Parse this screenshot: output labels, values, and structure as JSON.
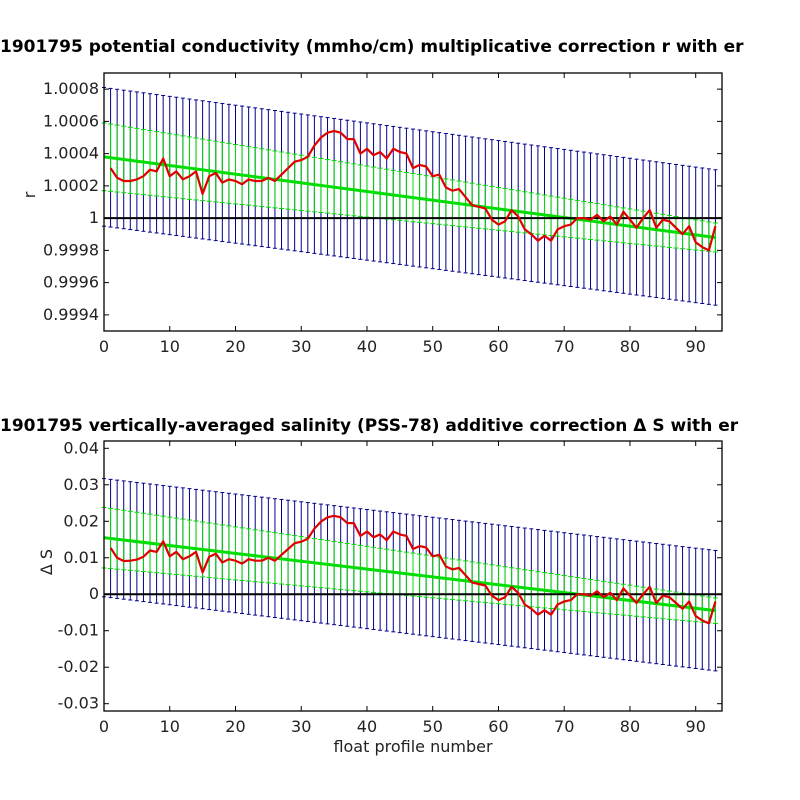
{
  "chart_data": [
    {
      "type": "line",
      "title": "1901795 potential conductivity (mmho/cm) multiplicative correction r with er",
      "xlabel": "",
      "ylabel": "r",
      "xlim": [
        0,
        94
      ],
      "ylim": [
        0.9993,
        1.0009
      ],
      "xticks": [
        0,
        10,
        20,
        30,
        40,
        50,
        60,
        70,
        80,
        90
      ],
      "yticks": [
        0.9994,
        0.9996,
        0.9998,
        1,
        1.0002,
        1.0004,
        1.0006,
        1.0008
      ],
      "ytick_labels": [
        "0.9994",
        "0.9996",
        "0.9998",
        "1",
        "1.0002",
        "1.0004",
        "1.0006",
        "1.0008"
      ],
      "reference_line": 1,
      "fit": {
        "x_start": 0,
        "x_end": 93,
        "y_start": 1.00038,
        "y_end": 0.99988
      },
      "inner_err": {
        "half_start": 0.00021,
        "half_end": 9e-05
      },
      "outer_err": {
        "half_start": 0.00043,
        "half_end": 0.00042
      },
      "series": [
        {
          "color": "#e00000",
          "x": [
            1,
            2,
            3,
            4,
            5,
            6,
            7,
            8,
            9,
            10,
            11,
            12,
            13,
            14,
            15,
            16,
            17,
            18,
            19,
            20,
            21,
            22,
            23,
            24,
            25,
            26,
            27,
            28,
            29,
            30,
            31,
            32,
            33,
            34,
            35,
            36,
            37,
            38,
            39,
            40,
            41,
            42,
            43,
            44,
            45,
            46,
            47,
            48,
            49,
            50,
            51,
            52,
            53,
            54,
            55,
            56,
            57,
            58,
            59,
            60,
            61,
            62,
            63,
            64,
            65,
            66,
            67,
            68,
            69,
            70,
            71,
            72,
            73,
            74,
            75,
            76,
            77,
            78,
            79,
            80,
            81,
            82,
            83,
            84,
            85,
            86,
            87,
            88,
            89,
            90,
            91,
            92,
            93
          ],
          "values": [
            1.00031,
            1.00025,
            1.00023,
            1.00023,
            1.00024,
            1.00026,
            1.0003,
            1.00029,
            1.00037,
            1.00026,
            1.00029,
            1.00024,
            1.00026,
            1.00029,
            1.00015,
            1.00026,
            1.00028,
            1.00022,
            1.00024,
            1.00023,
            1.00021,
            1.00024,
            1.00023,
            1.00023,
            1.00025,
            1.00023,
            1.00027,
            1.00031,
            1.00035,
            1.00036,
            1.00038,
            1.00045,
            1.0005,
            1.00053,
            1.00054,
            1.00053,
            1.00049,
            1.00049,
            1.0004,
            1.00043,
            1.00039,
            1.00041,
            1.00037,
            1.00043,
            1.00041,
            1.0004,
            1.00031,
            1.00033,
            1.00032,
            1.00026,
            1.00027,
            1.00019,
            1.00017,
            1.00018,
            1.00013,
            1.00008,
            1.00007,
            1.00006,
            0.99999,
            0.99996,
            0.99998,
            1.00005,
            1.00001,
            0.99993,
            0.9999,
            0.99986,
            0.99989,
            0.99986,
            0.99993,
            0.99995,
            0.99996,
            1.0,
            1.0,
            0.99999,
            1.00002,
            0.99998,
            1.00001,
            0.99996,
            1.00004,
            0.99999,
            0.99994,
            1.0,
            1.00005,
            0.99994,
            0.99999,
            0.99998,
            0.99994,
            0.9999,
            0.99995,
            0.99985,
            0.99982,
            0.9998,
            0.99995
          ]
        }
      ]
    },
    {
      "type": "line",
      "title": "1901795 vertically-averaged salinity (PSS-78) additive correction Δ S with er",
      "xlabel": "float profile number",
      "ylabel": "Δ S",
      "xlim": [
        0,
        94
      ],
      "ylim": [
        -0.032,
        0.042
      ],
      "xticks": [
        0,
        10,
        20,
        30,
        40,
        50,
        60,
        70,
        80,
        90
      ],
      "yticks": [
        -0.03,
        -0.02,
        -0.01,
        0,
        0.01,
        0.02,
        0.03,
        0.04
      ],
      "ytick_labels": [
        "-0.03",
        "-0.02",
        "-0.01",
        "0",
        "0.01",
        "0.02",
        "0.03",
        "0.04"
      ],
      "reference_line": 0,
      "fit": {
        "x_start": 0,
        "x_end": 93,
        "y_start": 0.0155,
        "y_end": -0.0045
      },
      "inner_err": {
        "half_start": 0.0083,
        "half_end": 0.0035
      },
      "outer_err": {
        "half_start": 0.0162,
        "half_end": 0.0165
      },
      "series": [
        {
          "color": "#e00000",
          "x": [
            1,
            2,
            3,
            4,
            5,
            6,
            7,
            8,
            9,
            10,
            11,
            12,
            13,
            14,
            15,
            16,
            17,
            18,
            19,
            20,
            21,
            22,
            23,
            24,
            25,
            26,
            27,
            28,
            29,
            30,
            31,
            32,
            33,
            34,
            35,
            36,
            37,
            38,
            39,
            40,
            41,
            42,
            43,
            44,
            45,
            46,
            47,
            48,
            49,
            50,
            51,
            52,
            53,
            54,
            55,
            56,
            57,
            58,
            59,
            60,
            61,
            62,
            63,
            64,
            65,
            66,
            67,
            68,
            69,
            70,
            71,
            72,
            73,
            74,
            75,
            76,
            77,
            78,
            79,
            80,
            81,
            82,
            83,
            84,
            85,
            86,
            87,
            88,
            89,
            90,
            91,
            92,
            93
          ],
          "values": [
            0.0127,
            0.01,
            0.0091,
            0.0092,
            0.0095,
            0.0103,
            0.012,
            0.0116,
            0.0145,
            0.0104,
            0.0116,
            0.0096,
            0.0104,
            0.0116,
            0.006,
            0.0103,
            0.0111,
            0.0087,
            0.0096,
            0.0092,
            0.0084,
            0.0096,
            0.0092,
            0.0092,
            0.01,
            0.0092,
            0.0108,
            0.0124,
            0.014,
            0.0144,
            0.0152,
            0.018,
            0.0199,
            0.0211,
            0.0215,
            0.0211,
            0.0195,
            0.0195,
            0.016,
            0.0172,
            0.0156,
            0.0164,
            0.0148,
            0.0172,
            0.0164,
            0.016,
            0.0124,
            0.0132,
            0.0128,
            0.0104,
            0.0108,
            0.0076,
            0.0068,
            0.0072,
            0.0052,
            0.0032,
            0.0028,
            0.0024,
            -0.0004,
            -0.0016,
            -0.0008,
            0.002,
            0.0004,
            -0.0028,
            -0.004,
            -0.0056,
            -0.0044,
            -0.0056,
            -0.0028,
            -0.002,
            -0.0016,
            0.0,
            0.0,
            -0.0004,
            0.0008,
            -0.0008,
            0.0004,
            -0.0016,
            0.0016,
            -0.0004,
            -0.0024,
            0.0,
            0.002,
            -0.0024,
            -0.0004,
            -0.0008,
            -0.0024,
            -0.004,
            -0.002,
            -0.006,
            -0.0072,
            -0.008,
            -0.002
          ]
        }
      ]
    }
  ],
  "colors": {
    "data_line": "#e00000",
    "inner_error": "#00dd00",
    "outer_error": "#00008b",
    "reference_line": "#000000"
  }
}
